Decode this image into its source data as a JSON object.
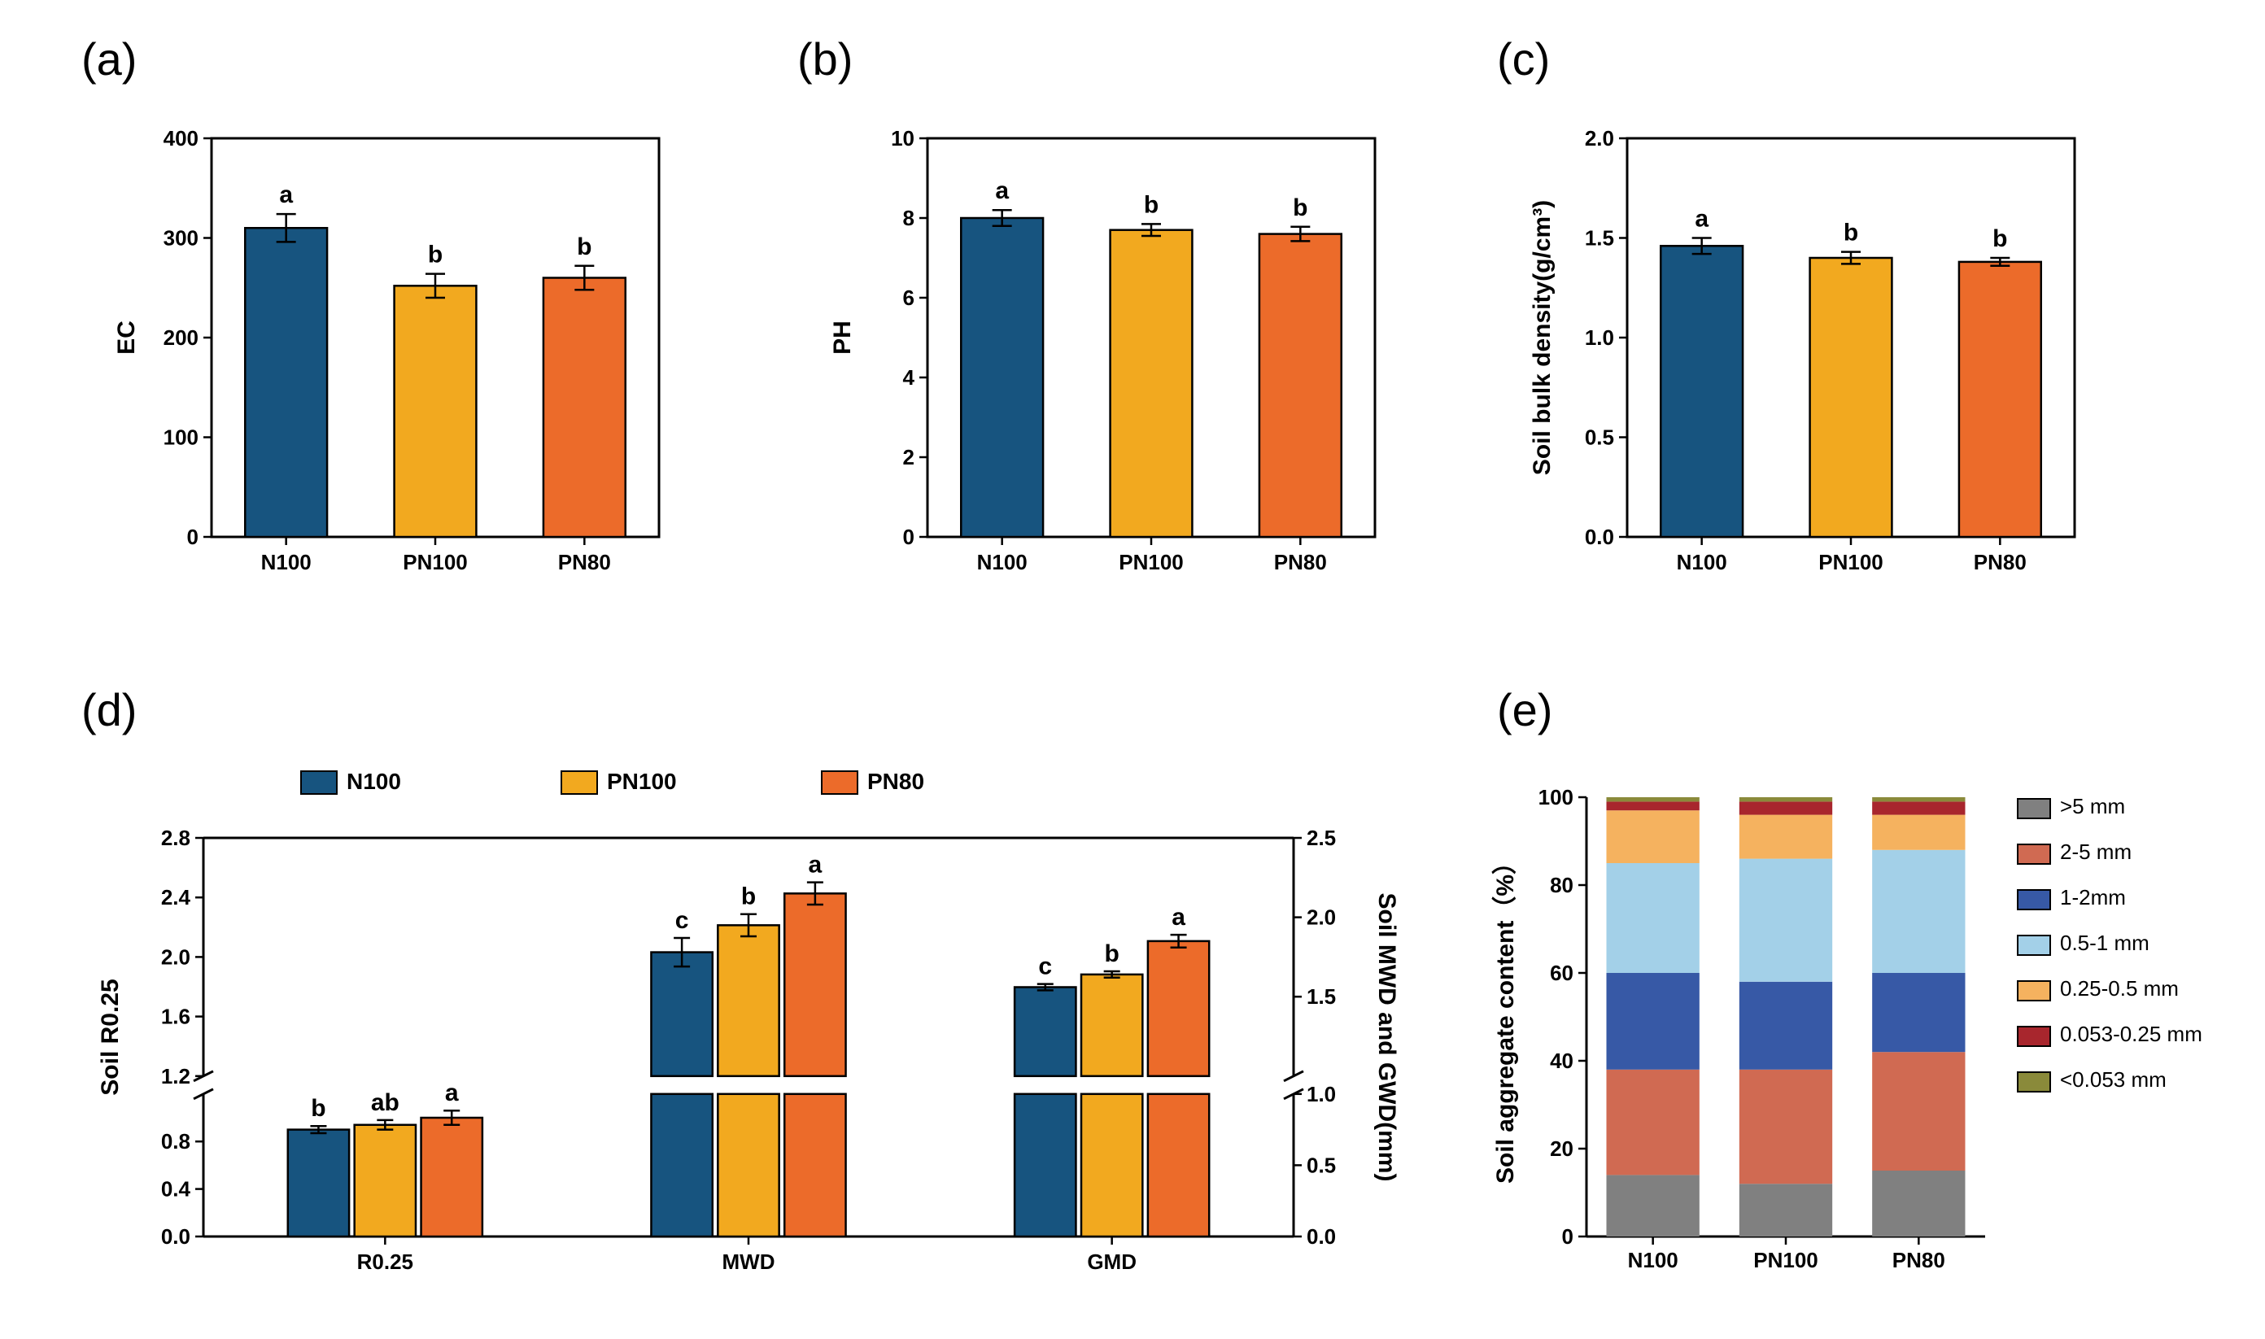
{
  "panels": {
    "a": {
      "label": "(a)"
    },
    "b": {
      "label": "(b)"
    },
    "c": {
      "label": "(c)"
    },
    "d": {
      "label": "(d)"
    },
    "e": {
      "label": "(e)"
    }
  },
  "colors": {
    "N100": "#17547f",
    "PN100": "#f2a91f",
    "PN80": "#ec6b2a",
    "bg": "#ffffff",
    "axis": "#000000",
    "stack_gt5": "#808080",
    "stack_2_5": "#d06a52",
    "stack_1_2": "#3759a6",
    "stack_05_1": "#a3d0e8",
    "stack_025_05": "#f5b25f",
    "stack_0053_025": "#a8262d",
    "stack_lt0053": "#8a8a3a"
  },
  "chart_a": {
    "type": "bar",
    "ylabel": "EC",
    "ylim": [
      0,
      400
    ],
    "ytick_step": 100,
    "categories": [
      "N100",
      "PN100",
      "PN80"
    ],
    "values": [
      310,
      252,
      260
    ],
    "errors": [
      14,
      12,
      12
    ],
    "letters": [
      "a",
      "b",
      "b"
    ],
    "bar_colors": [
      "#17547f",
      "#f2a91f",
      "#ec6b2a"
    ]
  },
  "chart_b": {
    "type": "bar",
    "ylabel": "PH",
    "ylim": [
      0,
      10
    ],
    "ytick_step": 2,
    "categories": [
      "N100",
      "PN100",
      "PN80"
    ],
    "values": [
      8.0,
      7.7,
      7.6
    ],
    "errors": [
      0.2,
      0.15,
      0.18
    ],
    "letters": [
      "a",
      "b",
      "b"
    ],
    "bar_colors": [
      "#17547f",
      "#f2a91f",
      "#ec6b2a"
    ]
  },
  "chart_c": {
    "type": "bar",
    "ylabel": "Soil bulk density(g/cm³)",
    "ylim": [
      0.0,
      2.0
    ],
    "ytick_step": 0.5,
    "categories": [
      "N100",
      "PN100",
      "PN80"
    ],
    "values": [
      1.46,
      1.4,
      1.38
    ],
    "errors": [
      0.04,
      0.03,
      0.02
    ],
    "letters": [
      "a",
      "b",
      "b"
    ],
    "bar_colors": [
      "#17547f",
      "#f2a91f",
      "#ec6b2a"
    ]
  },
  "chart_d": {
    "type": "bar_grouped_dual_axis",
    "ylabel_left": "Soil R0.25",
    "ylabel_right": "Soil MWD and GWD(mm)",
    "left_break": {
      "low": [
        0.0,
        1.2,
        0.4
      ],
      "high": [
        1.2,
        2.8,
        0.4
      ]
    },
    "right_break": {
      "low": [
        0.0,
        1.0,
        0.5
      ],
      "high": [
        1.0,
        2.5,
        0.5
      ]
    },
    "groups": [
      "R0.25",
      "MWD",
      "GMD"
    ],
    "series": [
      "N100",
      "PN100",
      "PN80"
    ],
    "axis_per_group": [
      "left",
      "right",
      "right"
    ],
    "values": [
      [
        0.9,
        0.94,
        1.0
      ],
      [
        1.78,
        1.95,
        2.15
      ],
      [
        1.56,
        1.64,
        1.85
      ]
    ],
    "errors": [
      [
        0.03,
        0.04,
        0.06
      ],
      [
        0.09,
        0.07,
        0.07
      ],
      [
        0.02,
        0.02,
        0.04
      ]
    ],
    "letters": [
      [
        "b",
        "ab",
        "a"
      ],
      [
        "c",
        "b",
        "a"
      ],
      [
        "c",
        "b",
        "a"
      ]
    ],
    "bar_colors": [
      "#17547f",
      "#f2a91f",
      "#ec6b2a"
    ]
  },
  "chart_e": {
    "type": "stacked_bar",
    "ylabel": "Soil aggregate content（%）",
    "ylim": [
      0,
      100
    ],
    "ytick_step": 20,
    "categories": [
      "N100",
      "PN100",
      "PN80"
    ],
    "stack_labels": [
      ">5 mm",
      "2-5 mm",
      "1-2mm",
      "0.5-1 mm",
      "0.25-0.5 mm",
      "0.053-0.25 mm",
      "<0.053 mm"
    ],
    "stack_colors": [
      "#808080",
      "#d06a52",
      "#3759a6",
      "#a3d0e8",
      "#f5b25f",
      "#a8262d",
      "#8a8a3a"
    ],
    "data": {
      "N100": [
        14,
        24,
        22,
        25,
        12,
        2,
        1
      ],
      "PN100": [
        12,
        26,
        20,
        28,
        10,
        3,
        1
      ],
      "PN80": [
        15,
        27,
        18,
        28,
        8,
        3,
        1
      ]
    }
  },
  "legend_d": {
    "items": [
      "N100",
      "PN100",
      "PN80"
    ]
  },
  "fonts": {
    "panel_label_size": 56,
    "axis_title_size": 30,
    "tick_label_size": 26,
    "sig_letter_size": 30,
    "legend_size": 26
  }
}
